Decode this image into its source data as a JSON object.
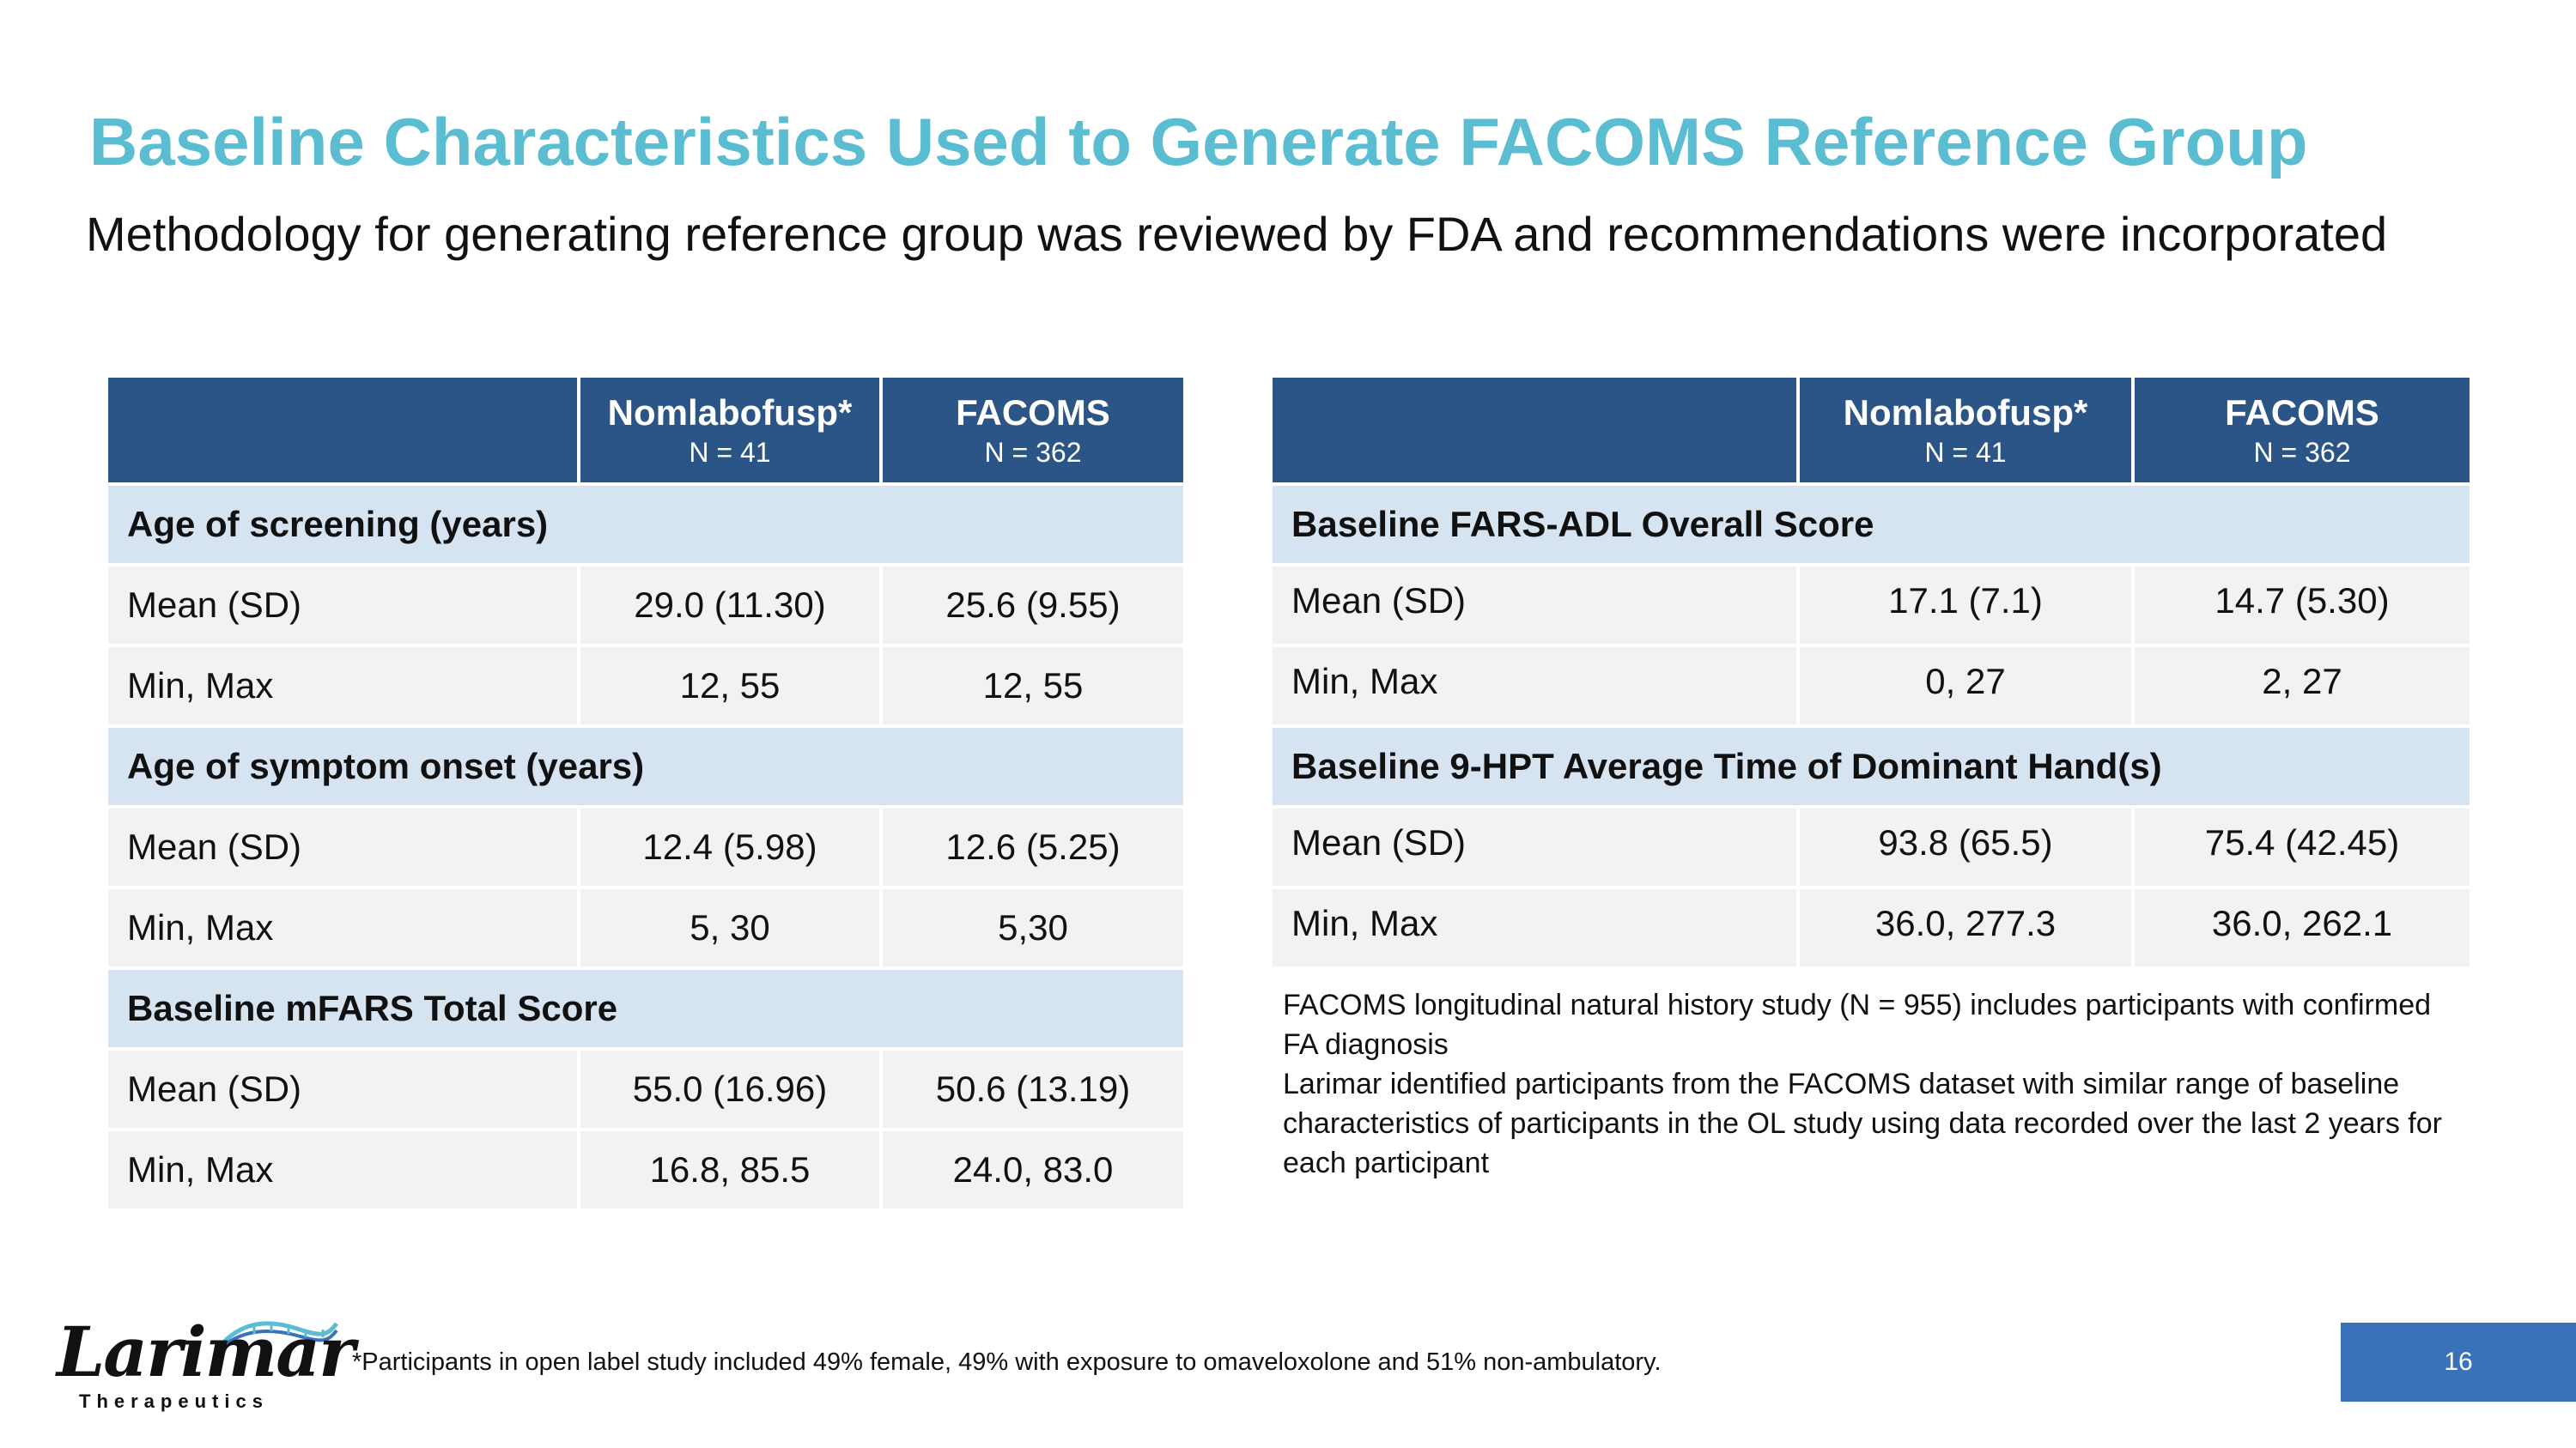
{
  "slide": {
    "title": "Baseline Characteristics Used to Generate FACOMS Reference Group",
    "subtitle": "Methodology for generating reference group was reviewed by FDA and recommendations were incorporated",
    "page_number": "16"
  },
  "table_left": {
    "columns": [
      {
        "name": "Nomlabofusp*",
        "n": "N = 41"
      },
      {
        "name": "FACOMS",
        "n": "N = 362"
      }
    ],
    "sections": [
      {
        "title": "Age of screening (years)",
        "rows": [
          {
            "label": "Mean (SD)",
            "values": [
              "29.0 (11.30)",
              "25.6 (9.55)"
            ]
          },
          {
            "label": "Min, Max",
            "values": [
              "12, 55",
              "12, 55"
            ]
          }
        ]
      },
      {
        "title": "Age of symptom onset (years)",
        "rows": [
          {
            "label": "Mean (SD)",
            "values": [
              "12.4 (5.98)",
              "12.6 (5.25)"
            ]
          },
          {
            "label": "Min, Max",
            "values": [
              "5, 30",
              "5,30"
            ]
          }
        ]
      },
      {
        "title": "Baseline mFARS Total Score",
        "rows": [
          {
            "label": "Mean (SD)",
            "values": [
              "55.0 (16.96)",
              "50.6 (13.19)"
            ]
          },
          {
            "label": "Min, Max",
            "values": [
              "16.8, 85.5",
              "24.0, 83.0"
            ]
          }
        ]
      }
    ]
  },
  "table_right": {
    "columns": [
      {
        "name": "Nomlabofusp*",
        "n": "N = 41"
      },
      {
        "name": "FACOMS",
        "n": "N = 362"
      }
    ],
    "sections": [
      {
        "title": "Baseline FARS-ADL Overall Score",
        "rows": [
          {
            "label": "Mean (SD)",
            "values": [
              "17.1 (7.1)",
              "14.7 (5.30)"
            ]
          },
          {
            "label": "Min, Max",
            "values": [
              "0, 27",
              "2, 27"
            ]
          }
        ]
      },
      {
        "title": "Baseline 9-HPT Average Time of Dominant Hand(s)",
        "rows": [
          {
            "label": "Mean (SD)",
            "values": [
              "93.8 (65.5)",
              "75.4 (42.45)"
            ]
          },
          {
            "label": "Min, Max",
            "values": [
              "36.0, 277.3",
              "36.0, 262.1"
            ]
          }
        ]
      }
    ]
  },
  "notes": [
    "FACOMS longitudinal natural history study (N = 955) includes participants with confirmed FA diagnosis",
    "Larimar identified participants from the FACOMS dataset with similar range of baseline characteristics of participants in the OL study using data recorded over the last 2 years for each participant"
  ],
  "footer": {
    "logo_name": "Larimar",
    "logo_sub": "Therapeutics",
    "footnote": "*Participants in open label study included 49% female, 49% with exposure to omaveloxolone and 51% non-ambulatory.",
    "logo_icon": "dna-helix-icon",
    "colors": {
      "title": "#5bbdd1",
      "header": "#2b5586",
      "section": "#d6e3f1",
      "row": "#f2f2f2",
      "page_box": "#3a72b9"
    }
  }
}
